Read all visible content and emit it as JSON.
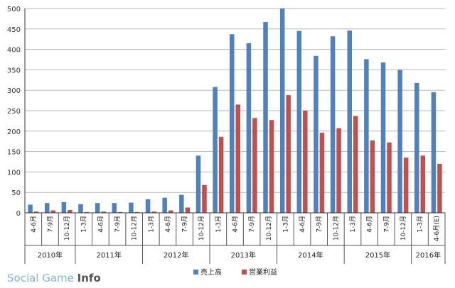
{
  "chart_data": {
    "type": "bar",
    "ylim": [
      0,
      500
    ],
    "y_ticks": [
      0,
      50,
      100,
      150,
      200,
      250,
      300,
      350,
      400,
      450,
      500
    ],
    "grid": "horizontal",
    "legend_position": "bottom",
    "categories": [
      "4-6月",
      "7-9月",
      "10-12月",
      "1-3月",
      "4-6月",
      "7-9月",
      "10-12月",
      "1-3月",
      "4-6月",
      "7-9月",
      "10-12月",
      "1-3月",
      "4-6月",
      "7-9月",
      "10-12月",
      "1-3月",
      "4-6月",
      "7-9月",
      "10-12月",
      "1-3月",
      "4-6月",
      "7-9月",
      "10-12月",
      "1-3月",
      "4-6月(E)"
    ],
    "years": [
      {
        "label": "2010年",
        "count": 3
      },
      {
        "label": "2011年",
        "count": 4
      },
      {
        "label": "2012年",
        "count": 4
      },
      {
        "label": "2013年",
        "count": 4
      },
      {
        "label": "2014年",
        "count": 4
      },
      {
        "label": "2015年",
        "count": 4
      },
      {
        "label": "2016年",
        "count": 2
      }
    ],
    "series": [
      {
        "name": "売上高",
        "color": "#4f81bd",
        "values": [
          20,
          24,
          26,
          21,
          24,
          24,
          25,
          33,
          37,
          44,
          140,
          308,
          437,
          415,
          467,
          500,
          445,
          384,
          432,
          446,
          376,
          368,
          350,
          318,
          295
        ]
      },
      {
        "name": "営業利益",
        "color": "#c0504d",
        "values": [
          3,
          6,
          7,
          2,
          3,
          2,
          2,
          3,
          6,
          13,
          68,
          186,
          265,
          232,
          227,
          288,
          250,
          196,
          207,
          237,
          177,
          172,
          135,
          140,
          120
        ]
      }
    ]
  },
  "watermark": "Social Game Info"
}
